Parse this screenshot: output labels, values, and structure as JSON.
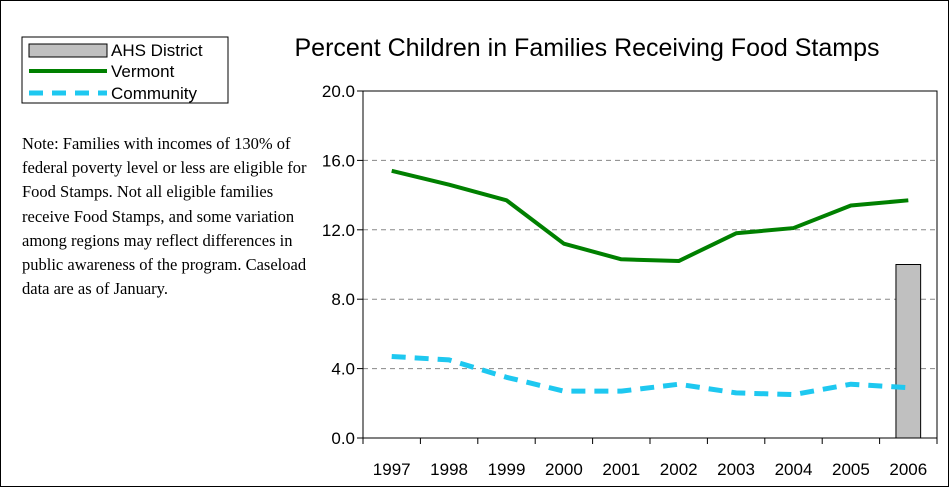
{
  "chart_data": {
    "type": "line",
    "title": "Percent Children in Families Receiving Food Stamps",
    "categories": [
      "1997",
      "1998",
      "1999",
      "2000",
      "2001",
      "2002",
      "2003",
      "2004",
      "2005",
      "2006"
    ],
    "ylim": [
      0,
      20
    ],
    "yticks": [
      "0.0",
      "4.0",
      "8.0",
      "12.0",
      "16.0",
      "20.0"
    ],
    "grid": true,
    "legend_position": "top-left",
    "series": [
      {
        "name": "AHS District",
        "kind": "bar",
        "color": "#c0c0c0",
        "values": [
          null,
          null,
          null,
          null,
          null,
          null,
          null,
          null,
          null,
          10.0
        ]
      },
      {
        "name": "Vermont",
        "kind": "line",
        "color": "#008000",
        "values": [
          15.4,
          14.6,
          13.7,
          11.2,
          10.3,
          10.2,
          11.8,
          12.1,
          13.4,
          13.7
        ]
      },
      {
        "name": "Community",
        "kind": "dashed-line",
        "color": "#1ec8f0",
        "values": [
          4.7,
          4.5,
          3.5,
          2.7,
          2.7,
          3.1,
          2.6,
          2.5,
          3.1,
          2.9
        ]
      }
    ]
  },
  "note": "Note: Families with incomes of 130% of federal poverty level or less are eligible for Food Stamps.  Not all eligible families receive Food Stamps, and some variation among regions may reflect differences in public awareness of the program.  Caseload data are as of January."
}
